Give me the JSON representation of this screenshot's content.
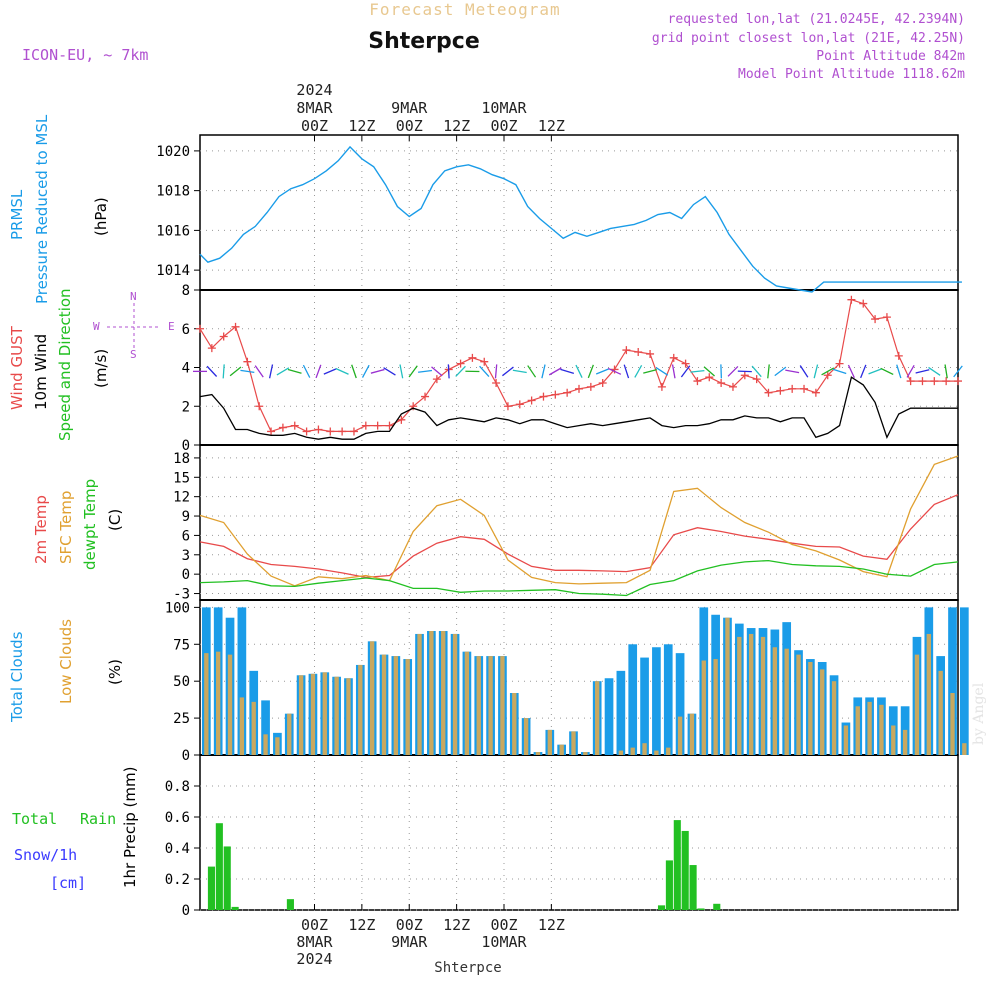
{
  "header": {
    "top_title": "Forecast Meteogram",
    "location": "Shterpce",
    "model": "ICON-EU, ~ 7km",
    "requested": "requested lon,lat (21.0245E, 42.2394N)",
    "grid_point": "grid point closest lon,lat (21E, 42.25N)",
    "point_alt": "Point Altitude 842m",
    "model_alt": "Model Point Altitude 1118.62m",
    "footer_location": "Shterpce",
    "watermark": "by Angel"
  },
  "colors": {
    "pressure": "#1a9ce8",
    "gust": "#e84a4a",
    "wind": "#000000",
    "temp2m": "#e84a4a",
    "sfc": "#e0a030",
    "dewpt": "#22c022",
    "total_clouds": "#1a9ce8",
    "low_clouds": "#c8a860",
    "rain": "#22c022",
    "purple": "#b050d0",
    "snow": "#3a3aff"
  },
  "chart_data": [
    {
      "type": "line",
      "id": "pressure",
      "labels": [
        "PRMSL",
        "Pressure Reduced to MSL"
      ],
      "ylabel": "(hPa)",
      "ylim": [
        1013,
        1020.8
      ],
      "yticks": [
        1014,
        1016,
        1018,
        1020
      ],
      "x": [
        0,
        2,
        5,
        8,
        11,
        14,
        17,
        20,
        23,
        26,
        29,
        32,
        35,
        38,
        41,
        44,
        47,
        50,
        53,
        56,
        59,
        62,
        65,
        68,
        71,
        74,
        77,
        80,
        83,
        86,
        89,
        92,
        95,
        98,
        101,
        104,
        107,
        110,
        113,
        116,
        119,
        122,
        125,
        128,
        131,
        134,
        137,
        140,
        143,
        146,
        149,
        152,
        155,
        158,
        161,
        164,
        167,
        170,
        173,
        176,
        179,
        182,
        185,
        188,
        191,
        193
      ],
      "values": [
        1014.8,
        1014.4,
        1014.6,
        1015.1,
        1015.8,
        1016.2,
        1016.9,
        1017.7,
        1018.1,
        1018.3,
        1018.6,
        1019.0,
        1019.5,
        1020.2,
        1019.6,
        1019.2,
        1018.3,
        1017.2,
        1016.7,
        1017.1,
        1018.3,
        1019.0,
        1019.2,
        1019.3,
        1019.1,
        1018.8,
        1018.6,
        1018.3,
        1017.2,
        1016.6,
        1016.1,
        1015.6,
        1015.9,
        1015.7,
        1015.9,
        1016.1,
        1016.2,
        1016.3,
        1016.5,
        1016.8,
        1016.9,
        1016.6,
        1017.3,
        1017.7,
        1016.9,
        1015.8,
        1015.0,
        1014.2,
        1013.6,
        1013.2,
        1013.1,
        1013.0,
        1012.9,
        1013.4,
        1013.4,
        1013.4,
        1013.4,
        1013.4,
        1013.4,
        1013.4,
        1013.4,
        1013.4,
        1013.4,
        1013.4,
        1013.4,
        1013.4
      ]
    },
    {
      "type": "line",
      "id": "wind",
      "labels": [
        "Wind GUST",
        "10m Wind",
        "Speed and Direction"
      ],
      "ylabel": "(m/s)",
      "ylim": [
        0,
        8
      ],
      "yticks": [
        0,
        2,
        4,
        6,
        8
      ],
      "compass": {
        "n": "N",
        "w": "W",
        "e": "E",
        "s": "S"
      },
      "x": [
        0,
        3,
        6,
        9,
        12,
        15,
        18,
        21,
        24,
        27,
        30,
        33,
        36,
        39,
        42,
        45,
        48,
        51,
        54,
        57,
        60,
        63,
        66,
        69,
        72,
        75,
        78,
        81,
        84,
        87,
        90,
        93,
        96,
        99,
        102,
        105,
        108,
        111,
        114,
        117,
        120,
        123,
        126,
        129,
        132,
        135,
        138,
        141,
        144,
        147,
        150,
        153,
        156,
        159,
        162,
        165,
        168,
        171,
        174,
        177,
        180,
        183,
        186,
        189,
        192
      ],
      "series": [
        {
          "name": "Wind GUST",
          "values": [
            6.0,
            5.0,
            5.6,
            6.1,
            4.3,
            2.0,
            0.7,
            0.9,
            1.0,
            0.7,
            0.8,
            0.7,
            0.7,
            0.7,
            1.0,
            1.0,
            1.0,
            1.3,
            2.0,
            2.5,
            3.4,
            3.9,
            4.2,
            4.5,
            4.3,
            3.2,
            2.0,
            2.1,
            2.3,
            2.5,
            2.6,
            2.7,
            2.9,
            3.0,
            3.2,
            3.9,
            4.9,
            4.8,
            4.7,
            3.0,
            4.5,
            4.2,
            3.3,
            3.5,
            3.2,
            3.0,
            3.6,
            3.4,
            2.7,
            2.8,
            2.9,
            2.9,
            2.7,
            3.6,
            4.2,
            7.5,
            7.3,
            6.5,
            6.6,
            4.6,
            3.3,
            3.3,
            3.3,
            3.3,
            3.3
          ]
        },
        {
          "name": "10m Wind",
          "values": [
            2.5,
            2.6,
            1.9,
            0.8,
            0.8,
            0.6,
            0.5,
            0.5,
            0.6,
            0.4,
            0.3,
            0.4,
            0.3,
            0.3,
            0.6,
            0.7,
            0.7,
            1.6,
            1.9,
            1.7,
            1.0,
            1.3,
            1.4,
            1.3,
            1.2,
            1.4,
            1.3,
            1.1,
            1.3,
            1.3,
            1.1,
            0.9,
            1.0,
            1.1,
            1.0,
            1.1,
            1.2,
            1.3,
            1.4,
            1.0,
            0.9,
            1.0,
            1.0,
            1.1,
            1.3,
            1.3,
            1.5,
            1.4,
            1.4,
            1.2,
            1.4,
            1.4,
            0.4,
            0.6,
            1.0,
            3.5,
            3.1,
            2.2,
            0.4,
            1.6,
            1.9,
            1.9,
            1.9,
            1.9,
            1.9
          ]
        }
      ]
    },
    {
      "type": "line",
      "id": "temperature",
      "labels": [
        "2m Temp",
        "SFC Temp",
        "dewpt Temp"
      ],
      "ylabel": "(C)",
      "ylim": [
        -4,
        20
      ],
      "yticks": [
        -3,
        0,
        3,
        6,
        9,
        12,
        15,
        18
      ],
      "x": [
        0,
        6,
        12,
        18,
        24,
        30,
        36,
        42,
        48,
        54,
        60,
        66,
        72,
        78,
        84,
        90,
        96,
        102,
        108,
        114,
        120,
        126,
        132,
        138,
        144,
        150,
        156,
        162,
        168,
        174,
        180,
        186,
        192
      ],
      "series": [
        {
          "name": "2m Temp",
          "values": [
            5.0,
            4.3,
            2.4,
            1.5,
            1.2,
            0.8,
            0.2,
            -0.5,
            -0.2,
            2.8,
            4.8,
            5.8,
            5.4,
            3.1,
            1.2,
            0.6,
            0.6,
            0.5,
            0.4,
            1.0,
            6.1,
            7.2,
            6.6,
            5.9,
            5.4,
            4.8,
            4.3,
            4.2,
            2.8,
            2.3,
            7.0,
            10.8,
            12.3
          ]
        },
        {
          "name": "SFC Temp",
          "values": [
            9.1,
            8.0,
            3.1,
            -0.3,
            -1.8,
            -0.4,
            -0.7,
            -0.2,
            -1.0,
            6.6,
            10.6,
            11.6,
            9.1,
            2.2,
            -0.5,
            -1.3,
            -1.5,
            -1.4,
            -1.3,
            0.6,
            12.8,
            13.3,
            10.3,
            8.0,
            6.5,
            4.6,
            3.6,
            2.2,
            0.4,
            -0.4,
            10.1,
            17.0,
            18.3
          ]
        },
        {
          "name": "dewpt Temp",
          "values": [
            -1.3,
            -1.2,
            -1.0,
            -1.8,
            -1.9,
            -1.4,
            -1.0,
            -0.6,
            -1.0,
            -2.2,
            -2.2,
            -2.8,
            -2.6,
            -2.6,
            -2.5,
            -2.4,
            -3.0,
            -3.1,
            -3.3,
            -1.6,
            -1.0,
            0.5,
            1.4,
            1.9,
            2.1,
            1.5,
            1.3,
            1.2,
            0.8,
            0.0,
            -0.3,
            1.5,
            1.9
          ]
        }
      ]
    },
    {
      "type": "bar",
      "id": "clouds",
      "labels": [
        "Total Clouds",
        "Low Clouds"
      ],
      "ylabel": "(%)",
      "ylim": [
        0,
        105
      ],
      "yticks": [
        0,
        25,
        50,
        75,
        100
      ],
      "x": [
        0,
        3,
        6,
        9,
        12,
        15,
        18,
        21,
        24,
        27,
        30,
        33,
        36,
        39,
        42,
        45,
        48,
        51,
        54,
        57,
        60,
        63,
        66,
        69,
        72,
        75,
        78,
        81,
        84,
        87,
        90,
        93,
        96,
        99,
        102,
        105,
        108,
        111,
        114,
        117,
        120,
        123,
        126,
        129,
        132,
        135,
        138,
        141,
        144,
        147,
        150,
        153,
        156,
        159,
        162,
        165,
        168,
        171,
        174,
        177,
        180,
        183,
        186,
        189,
        192
      ],
      "series": [
        {
          "name": "Total Clouds",
          "values": [
            100,
            100,
            93,
            100,
            57,
            37,
            15,
            28,
            54,
            55,
            56,
            53,
            52,
            61,
            77,
            68,
            67,
            65,
            82,
            84,
            84,
            82,
            70,
            67,
            67,
            67,
            42,
            25,
            2,
            17,
            7,
            16,
            2,
            50,
            52,
            57,
            75,
            66,
            73,
            75,
            69,
            28,
            100,
            95,
            93,
            89,
            86,
            86,
            85,
            90,
            71,
            65,
            63,
            54,
            22,
            39,
            39,
            39,
            33,
            33,
            80,
            100,
            67,
            100,
            100
          ]
        },
        {
          "name": "Low Clouds",
          "values": [
            69,
            70,
            68,
            39,
            36,
            14,
            12,
            28,
            54,
            55,
            56,
            53,
            52,
            61,
            77,
            68,
            67,
            65,
            82,
            84,
            84,
            82,
            70,
            67,
            67,
            67,
            42,
            25,
            2,
            17,
            7,
            16,
            2,
            50,
            0,
            3,
            5,
            8,
            3,
            5,
            26,
            28,
            64,
            65,
            93,
            80,
            82,
            80,
            73,
            72,
            68,
            63,
            58,
            50,
            20,
            33,
            36,
            34,
            20,
            17,
            68,
            82,
            57,
            42,
            8
          ]
        }
      ]
    },
    {
      "type": "bar",
      "id": "precip",
      "labels": [
        "Total",
        "Rain",
        "Snow/1h",
        "[cm]"
      ],
      "ylabel": "1hr Precip (mm)",
      "ylim": [
        0,
        1.0
      ],
      "yticks": [
        0,
        0.2,
        0.4,
        0.6,
        0.8
      ],
      "x": [
        2,
        4,
        6,
        8,
        22,
        116,
        118,
        120,
        122,
        124,
        126,
        130
      ],
      "values": [
        0.28,
        0.56,
        0.41,
        0.02,
        0.07,
        0.03,
        0.32,
        0.58,
        0.51,
        0.29,
        0.01,
        0.04
      ]
    }
  ],
  "time_axis": {
    "hour_range": [
      -29,
      163
    ],
    "top": [
      {
        "hour": 0,
        "lines": [
          "2024",
          "8MAR",
          "00Z"
        ]
      },
      {
        "hour": 12,
        "lines": [
          "12Z"
        ]
      },
      {
        "hour": 24,
        "lines": [
          "9MAR",
          "00Z"
        ]
      },
      {
        "hour": 36,
        "lines": [
          "12Z"
        ]
      },
      {
        "hour": 48,
        "lines": [
          "10MAR",
          "00Z"
        ]
      },
      {
        "hour": 60,
        "lines": [
          "12Z"
        ]
      }
    ],
    "bottom": [
      {
        "hour": 0,
        "lines": [
          "00Z",
          "8MAR",
          "2024"
        ]
      },
      {
        "hour": 12,
        "lines": [
          "12Z"
        ]
      },
      {
        "hour": 24,
        "lines": [
          "00Z",
          "9MAR"
        ]
      },
      {
        "hour": 36,
        "lines": [
          "12Z"
        ]
      },
      {
        "hour": 48,
        "lines": [
          "00Z",
          "10MAR"
        ]
      },
      {
        "hour": 60,
        "lines": [
          "12Z"
        ]
      }
    ]
  }
}
